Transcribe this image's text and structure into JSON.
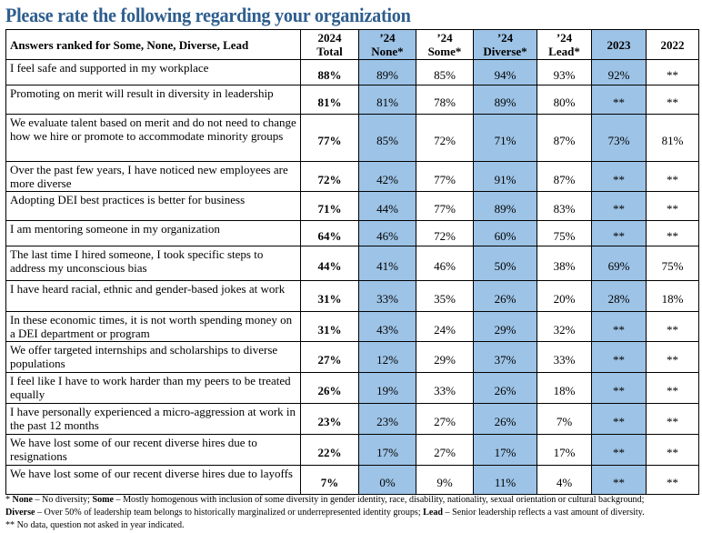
{
  "title": "Please rate the following regarding your organization",
  "colors": {
    "title": "#2e5e8e",
    "highlight": "#9dc3e6"
  },
  "headers": [
    "Answers ranked for Some, None, Diverse, Lead",
    "2024 Total",
    "’24 None*",
    "’24 Some*",
    "’24 Diverse*",
    "’24 Lead*",
    "2023",
    "2022"
  ],
  "rows": [
    {
      "q": "I feel safe and supported in my workplace",
      "v": [
        "88%",
        "89%",
        "85%",
        "94%",
        "93%",
        "92%",
        "**"
      ]
    },
    {
      "q": "Promoting on merit will result in diversity in leadership",
      "v": [
        "81%",
        "81%",
        "78%",
        "89%",
        "80%",
        "**",
        "**"
      ]
    },
    {
      "q": "We evaluate talent based on merit and do not need to change how we hire or promote to accommodate minority groups",
      "v": [
        "77%",
        "85%",
        "72%",
        "71%",
        "87%",
        "73%",
        "81%"
      ]
    },
    {
      "q": "Over the past few years, I have noticed new employees are more diverse",
      "v": [
        "72%",
        "42%",
        "77%",
        "91%",
        "87%",
        "**",
        "**"
      ]
    },
    {
      "q": "Adopting DEI best practices is better for business",
      "v": [
        "71%",
        "44%",
        "77%",
        "89%",
        "83%",
        "**",
        "**"
      ]
    },
    {
      "q": "I am mentoring someone in my organization",
      "v": [
        "64%",
        "46%",
        "72%",
        "60%",
        "75%",
        "**",
        "**"
      ]
    },
    {
      "q": "The last time I hired someone, I took specific steps to address my unconscious bias",
      "v": [
        "44%",
        "41%",
        "46%",
        "50%",
        "38%",
        "69%",
        "75%"
      ]
    },
    {
      "q": "I have heard racial, ethnic and gender-based jokes at work",
      "v": [
        "31%",
        "33%",
        "35%",
        "26%",
        "20%",
        "28%",
        "18%"
      ]
    },
    {
      "q": "In these economic times, it is not worth spending money on a DEI department or program",
      "v": [
        "31%",
        "43%",
        "24%",
        "29%",
        "32%",
        "**",
        "**"
      ]
    },
    {
      "q": "We offer targeted internships and scholarships to diverse populations",
      "v": [
        "27%",
        "12%",
        "29%",
        "37%",
        "33%",
        "**",
        "**"
      ]
    },
    {
      "q": "I feel like I have to work harder than my peers to be treated equally",
      "v": [
        "26%",
        "19%",
        "33%",
        "26%",
        "18%",
        "**",
        "**"
      ]
    },
    {
      "q": "I have personally experienced a micro-aggression at work in the past 12 months",
      "v": [
        "23%",
        "23%",
        "27%",
        "26%",
        "7%",
        "**",
        "**"
      ]
    },
    {
      "q": "We have lost some of our recent diverse hires due to resignations",
      "v": [
        "22%",
        "17%",
        "27%",
        "17%",
        "17%",
        "**",
        "**"
      ]
    },
    {
      "q": "We have lost some of our recent diverse hires due to layoffs",
      "v": [
        "7%",
        "0%",
        "9%",
        "11%",
        "4%",
        "**",
        "**"
      ]
    }
  ],
  "notes": {
    "star": "* ",
    "none_term": "None",
    "none_def": " – No diversity; ",
    "some_term": "Some",
    "some_def": " – Mostly homogenous with inclusion of some diversity in gender identity, race, disability, nationality, sexual orientation or cultural background;",
    "diverse_term": "Diverse",
    "diverse_def": " – Over 50% of leadership team belongs to historically marginalized or underrepresented identity groups; ",
    "lead_term": "Lead",
    "lead_def": " – Senior leadership reflects a vast amount of diversity.",
    "double_star": "** No data, question not asked in year indicated."
  }
}
